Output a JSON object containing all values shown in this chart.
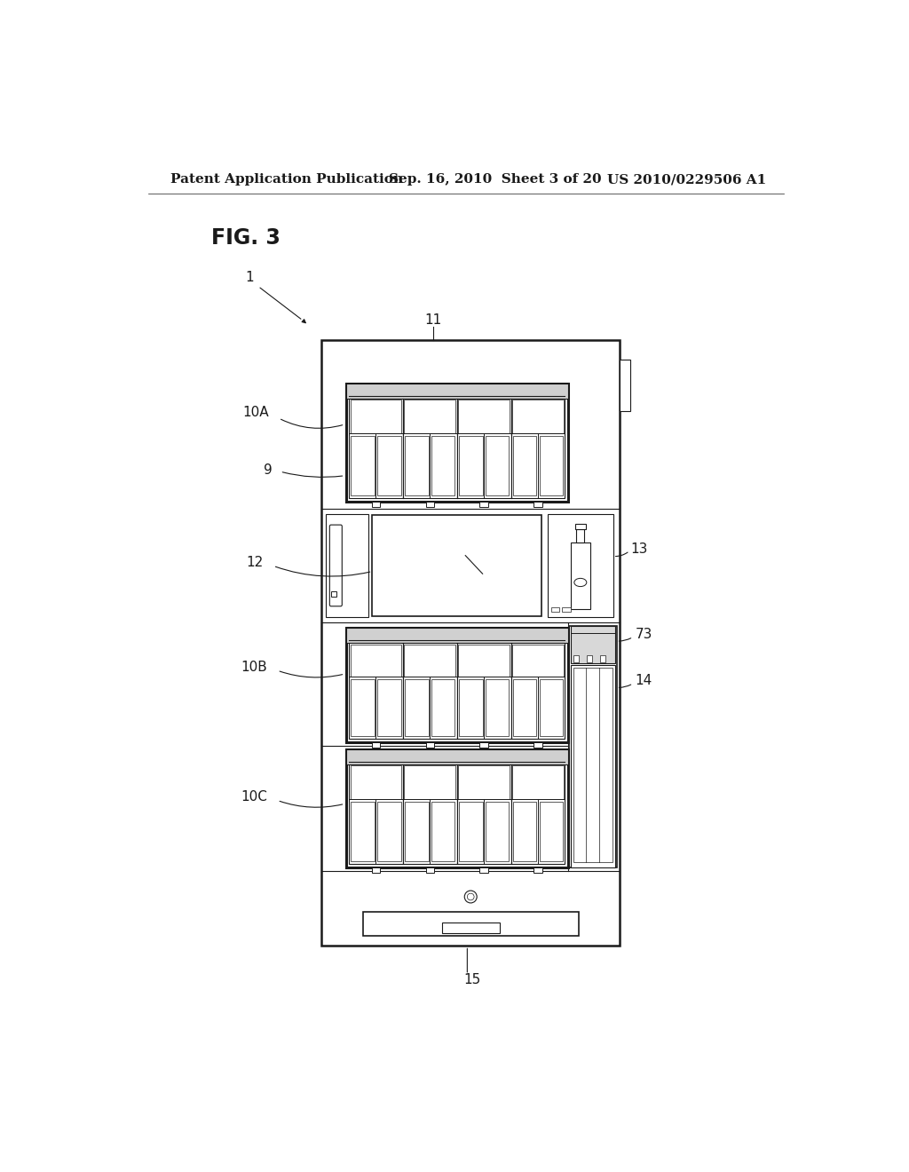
{
  "background_color": "#ffffff",
  "header_left": "Patent Application Publication",
  "header_center": "Sep. 16, 2010  Sheet 3 of 20",
  "header_right": "US 2010/0229506 A1",
  "fig_label": "FIG. 3",
  "header_fontsize": 11,
  "fig_label_fontsize": 17,
  "label_fontsize": 11,
  "color": "#1a1a1a"
}
